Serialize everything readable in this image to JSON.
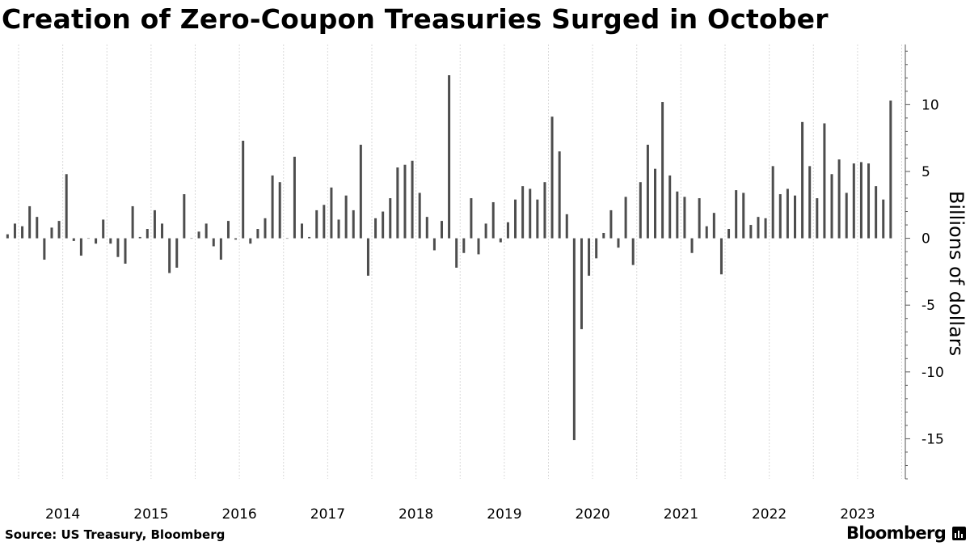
{
  "title": "Creation of Zero-Coupon Treasuries Surged in October",
  "source": "Source: US Treasury, Bloomberg",
  "brand": "Bloomberg",
  "colors": {
    "bar": "#4d4d4d",
    "grid": "#d9d9d9",
    "axis": "#555555",
    "background": "#ffffff"
  },
  "chart_data": {
    "type": "bar",
    "title": "Creation of Zero-Coupon Treasuries Surged in October",
    "ylabel": "Billions of dollars",
    "xlabel": "",
    "ylim": [
      -18,
      14.5
    ],
    "yticks": [
      -15,
      -10,
      -5,
      0,
      5,
      10
    ],
    "ytick_labels": [
      "-15",
      "-10",
      "-5",
      "0",
      "5",
      "10"
    ],
    "xticks": [
      "2014",
      "2015",
      "2016",
      "2017",
      "2018",
      "2019",
      "2020",
      "2021",
      "2022",
      "2023"
    ],
    "start": "2013-11",
    "end": "2023-10",
    "frequency": "monthly",
    "grid": "vertical",
    "values": [
      0.3,
      1.1,
      0.9,
      2.4,
      1.6,
      -1.6,
      0.8,
      1.3,
      4.8,
      -0.2,
      -1.3,
      0,
      -0.4,
      1.4,
      -0.4,
      -1.4,
      -1.9,
      2.4,
      0.1,
      0.7,
      2.1,
      1.1,
      -2.6,
      -2.2,
      3.3,
      0,
      0.5,
      1.1,
      -0.6,
      -1.6,
      1.3,
      -0.1,
      7.3,
      -0.4,
      0.7,
      1.5,
      4.7,
      4.2,
      0,
      6.1,
      1.1,
      0.1,
      2.1,
      2.5,
      3.8,
      1.4,
      3.2,
      2.1,
      7.0,
      -2.8,
      1.5,
      2.0,
      3.0,
      5.3,
      5.5,
      5.8,
      3.4,
      1.6,
      -0.9,
      1.3,
      12.2,
      -2.2,
      -1.1,
      3.0,
      -1.2,
      1.1,
      2.7,
      -0.3,
      1.2,
      2.9,
      3.9,
      3.7,
      2.9,
      4.2,
      9.1,
      6.5,
      1.8,
      -15.1,
      -6.8,
      -2.8,
      -1.5,
      0.4,
      2.1,
      -0.7,
      3.1,
      -2.0,
      4.2,
      7.0,
      5.2,
      10.2,
      4.7,
      3.5,
      3.1,
      -1.1,
      3.0,
      0.9,
      1.9,
      -2.7,
      0.7,
      3.6,
      3.4,
      1.0,
      1.6,
      1.5,
      5.4,
      3.3,
      3.7,
      3.2,
      8.7,
      5.4,
      3.0,
      8.6,
      4.8,
      5.9,
      3.4,
      5.6,
      5.7,
      5.6,
      3.9,
      2.9,
      10.3
    ]
  }
}
